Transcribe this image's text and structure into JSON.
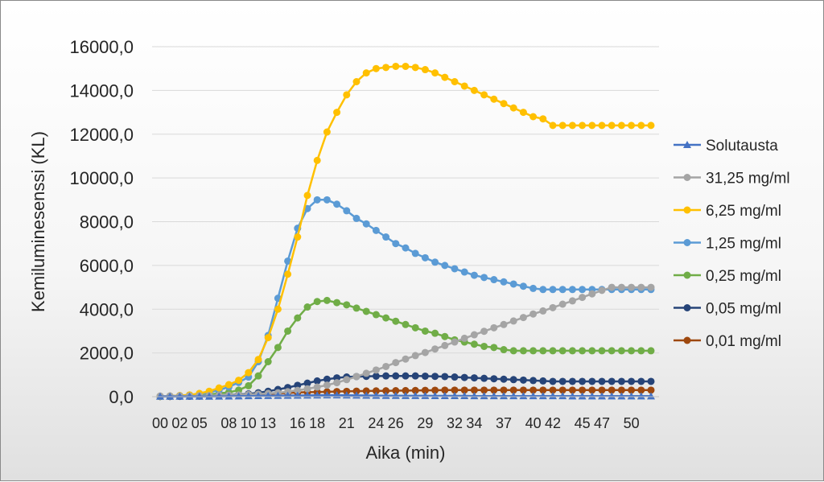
{
  "chart_data": {
    "type": "line",
    "xlabel": "Aika (min)",
    "ylabel": "Kemiluminesenssi (KL)",
    "ylim": [
      0,
      16000
    ],
    "yticks": [
      "0,0",
      "2000,0",
      "4000,0",
      "6000,0",
      "8000,0",
      "10000,0",
      "12000,0",
      "14000,0",
      "16000,0"
    ],
    "ytick_values": [
      0,
      2000,
      4000,
      6000,
      8000,
      10000,
      12000,
      14000,
      16000
    ],
    "grid": true,
    "legend_position": "right",
    "x": [
      "00",
      "01",
      "02",
      "03",
      "05",
      "06",
      "07",
      "08",
      "09",
      "10",
      "11",
      "13",
      "14",
      "15",
      "16",
      "17",
      "18",
      "19",
      "20",
      "21",
      "22",
      "23",
      "24",
      "25",
      "26",
      "27",
      "28",
      "29",
      "30",
      "31",
      "32",
      "33",
      "34",
      "35",
      "36",
      "37",
      "38",
      "39",
      "40",
      "41",
      "42",
      "43",
      "44",
      "45",
      "46",
      "47",
      "48",
      "49",
      "50",
      "51",
      "52"
    ],
    "xtick_labels": [
      "00",
      "02",
      "05",
      "08",
      "10",
      "13",
      "16",
      "18",
      "21",
      "24",
      "26",
      "29",
      "32",
      "34",
      "37",
      "40",
      "42",
      "45",
      "47",
      "50"
    ],
    "series": [
      {
        "name": "Solutausta",
        "color": "#4472c4",
        "marker": "triangle",
        "values": [
          10,
          10,
          10,
          10,
          10,
          10,
          15,
          20,
          25,
          30,
          35,
          40,
          45,
          50,
          55,
          60,
          65,
          70,
          70,
          65,
          60,
          55,
          50,
          45,
          45,
          40,
          40,
          40,
          35,
          35,
          35,
          35,
          30,
          30,
          30,
          30,
          30,
          30,
          30,
          30,
          30,
          30,
          25,
          25,
          25,
          25,
          25,
          25,
          25,
          25,
          25
        ]
      },
      {
        "name": "31,25 mg/ml",
        "color": "#a5a5a5",
        "marker": "circle",
        "values": [
          30,
          30,
          30,
          30,
          40,
          50,
          60,
          70,
          80,
          100,
          120,
          150,
          180,
          230,
          290,
          360,
          440,
          530,
          640,
          780,
          920,
          1070,
          1220,
          1380,
          1560,
          1720,
          1880,
          2020,
          2180,
          2340,
          2500,
          2670,
          2830,
          2990,
          3150,
          3300,
          3460,
          3620,
          3780,
          3920,
          4070,
          4230,
          4380,
          4540,
          4700,
          4860,
          5000,
          5000,
          5000,
          5000,
          5000
        ]
      },
      {
        "name": "6,25 mg/ml",
        "color": "#ffc000",
        "marker": "circle",
        "values": [
          20,
          30,
          50,
          80,
          150,
          250,
          400,
          550,
          750,
          1100,
          1700,
          2700,
          4000,
          5600,
          7300,
          9200,
          10800,
          12100,
          13000,
          13800,
          14400,
          14800,
          15000,
          15050,
          15100,
          15100,
          15050,
          14950,
          14800,
          14600,
          14400,
          14200,
          14000,
          13800,
          13600,
          13400,
          13200,
          13000,
          12800,
          12700,
          12400,
          12400,
          12400,
          12400,
          12400,
          12400,
          12400,
          12400,
          12400,
          12400,
          12400
        ]
      },
      {
        "name": "1,25 mg/ml",
        "color": "#5b9bd5",
        "marker": "circle",
        "values": [
          20,
          30,
          50,
          80,
          120,
          200,
          300,
          450,
          650,
          900,
          1600,
          2800,
          4500,
          6200,
          7700,
          8600,
          9000,
          9000,
          8800,
          8500,
          8150,
          7900,
          7600,
          7300,
          7000,
          6800,
          6550,
          6350,
          6150,
          6000,
          5850,
          5700,
          5550,
          5450,
          5350,
          5250,
          5150,
          5050,
          4950,
          4900,
          4900,
          4900,
          4900,
          4900,
          4900,
          4900,
          4900,
          4900,
          4900,
          4900,
          4900
        ]
      },
      {
        "name": "0,25 mg/ml",
        "color": "#70ad47",
        "marker": "circle",
        "values": [
          10,
          20,
          30,
          40,
          60,
          100,
          150,
          200,
          300,
          500,
          950,
          1600,
          2250,
          3000,
          3600,
          4100,
          4350,
          4400,
          4300,
          4200,
          4050,
          3900,
          3750,
          3600,
          3450,
          3300,
          3150,
          3000,
          2900,
          2750,
          2600,
          2500,
          2400,
          2300,
          2250,
          2150,
          2100,
          2100,
          2100,
          2100,
          2100,
          2100,
          2100,
          2100,
          2100,
          2100,
          2100,
          2100,
          2100,
          2100,
          2100
        ]
      },
      {
        "name": "0,05 mg/ml",
        "color": "#264478",
        "marker": "circle",
        "values": [
          10,
          10,
          15,
          20,
          30,
          40,
          60,
          80,
          100,
          130,
          180,
          250,
          330,
          420,
          520,
          620,
          720,
          800,
          860,
          900,
          920,
          930,
          940,
          950,
          950,
          950,
          950,
          940,
          930,
          920,
          900,
          880,
          860,
          840,
          820,
          800,
          780,
          760,
          740,
          720,
          700,
          700,
          700,
          700,
          700,
          700,
          700,
          700,
          700,
          700,
          700
        ]
      },
      {
        "name": "0,01 mg/ml",
        "color": "#9e480e",
        "marker": "circle",
        "values": [
          10,
          10,
          15,
          20,
          25,
          35,
          45,
          60,
          75,
          90,
          110,
          130,
          150,
          170,
          190,
          205,
          215,
          225,
          235,
          245,
          255,
          260,
          265,
          270,
          275,
          280,
          285,
          290,
          295,
          300,
          300,
          300,
          300,
          300,
          300,
          300,
          300,
          300,
          300,
          300,
          300,
          300,
          300,
          300,
          300,
          300,
          300,
          300,
          300,
          300,
          300
        ]
      }
    ]
  }
}
